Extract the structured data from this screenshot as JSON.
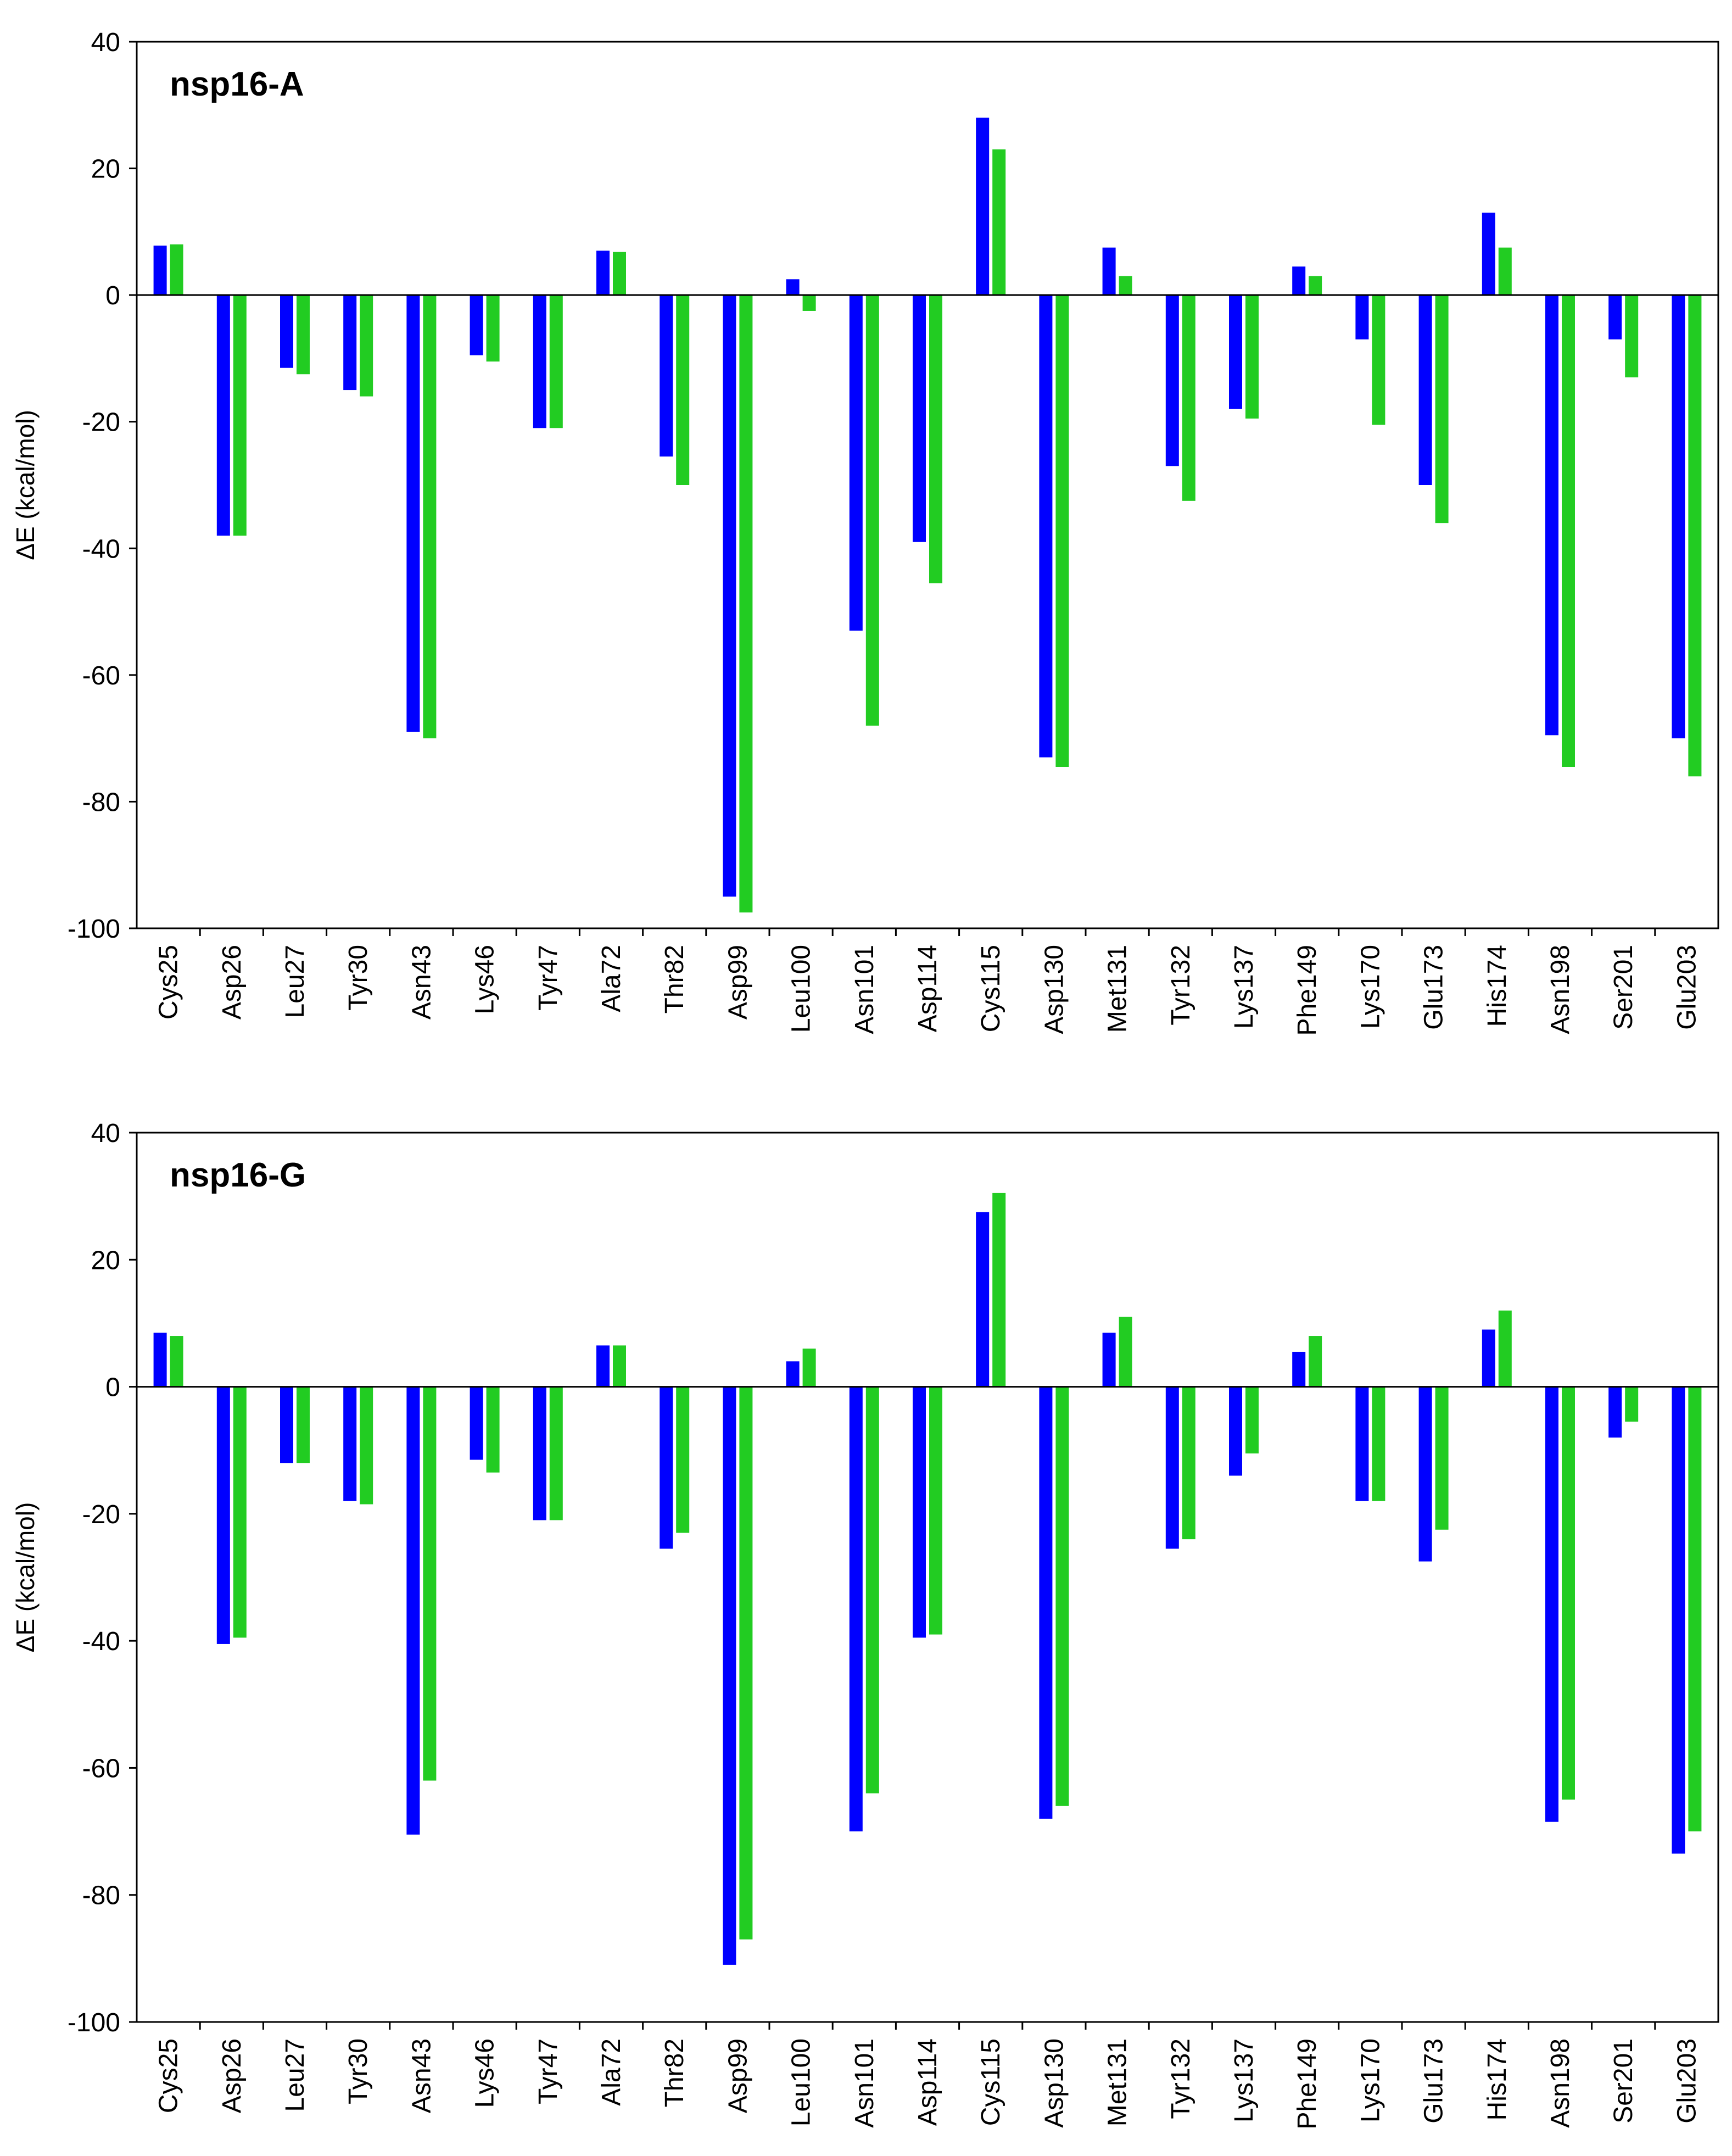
{
  "chart_data": [
    {
      "type": "bar",
      "title": "nsp16-A",
      "ylabel": "ΔE (kcal/mol)",
      "xlabel": "",
      "ylim": [
        -100,
        40
      ],
      "yticks": [
        40,
        20,
        0,
        -20,
        -40,
        -60,
        -80,
        -100
      ],
      "categories": [
        "Cys25",
        "Asp26",
        "Leu27",
        "Tyr30",
        "Asn43",
        "Lys46",
        "Tyr47",
        "Ala72",
        "Thr82",
        "Asp99",
        "Leu100",
        "Asn101",
        "Asp114",
        "Cys115",
        "Asp130",
        "Met131",
        "Tyr132",
        "Lys137",
        "Phe149",
        "Lys170",
        "Glu173",
        "His174",
        "Asn198",
        "Ser201",
        "Glu203"
      ],
      "series": [
        {
          "name": "series-blue",
          "color": "#0000ff",
          "values": [
            7.8,
            -38,
            -11.5,
            -15,
            -69,
            -9.5,
            -21,
            7,
            -25.5,
            -95,
            2.5,
            -53,
            -39,
            28,
            -73,
            7.5,
            -27,
            -18,
            4.5,
            -7,
            -30,
            13,
            -69.5,
            -7,
            -70
          ]
        },
        {
          "name": "series-green",
          "color": "#22cc22",
          "values": [
            8,
            -38,
            -12.5,
            -16,
            -70,
            -10.5,
            -21,
            6.8,
            -30,
            -97.5,
            -2.5,
            -68,
            -45.5,
            23,
            -74.5,
            3,
            -32.5,
            -19.5,
            3,
            -20.5,
            -36,
            7.5,
            -74.5,
            -13,
            -76
          ]
        }
      ]
    },
    {
      "type": "bar",
      "title": "nsp16-G",
      "ylabel": "ΔE (kcal/mol)",
      "xlabel": "",
      "ylim": [
        -100,
        40
      ],
      "yticks": [
        40,
        20,
        0,
        -20,
        -40,
        -60,
        -80,
        -100
      ],
      "categories": [
        "Cys25",
        "Asp26",
        "Leu27",
        "Tyr30",
        "Asn43",
        "Lys46",
        "Tyr47",
        "Ala72",
        "Thr82",
        "Asp99",
        "Leu100",
        "Asn101",
        "Asp114",
        "Cys115",
        "Asp130",
        "Met131",
        "Tyr132",
        "Lys137",
        "Phe149",
        "Lys170",
        "Glu173",
        "His174",
        "Asn198",
        "Ser201",
        "Glu203"
      ],
      "series": [
        {
          "name": "series-blue",
          "color": "#0000ff",
          "values": [
            8.5,
            -40.5,
            -12,
            -18,
            -70.5,
            -11.5,
            -21,
            6.5,
            -25.5,
            -91,
            4,
            -70,
            -39.5,
            27.5,
            -68,
            8.5,
            -25.5,
            -14,
            5.5,
            -18,
            -27.5,
            9,
            -68.5,
            -8,
            -73.5
          ]
        },
        {
          "name": "series-green",
          "color": "#22cc22",
          "values": [
            8,
            -39.5,
            -12,
            -18.5,
            -62,
            -13.5,
            -21,
            6.5,
            -23,
            -87,
            6,
            -64,
            -39,
            30.5,
            -66,
            11,
            -24,
            -10.5,
            8,
            -18,
            -22.5,
            12,
            -65,
            -5.5,
            -70
          ]
        }
      ]
    }
  ]
}
